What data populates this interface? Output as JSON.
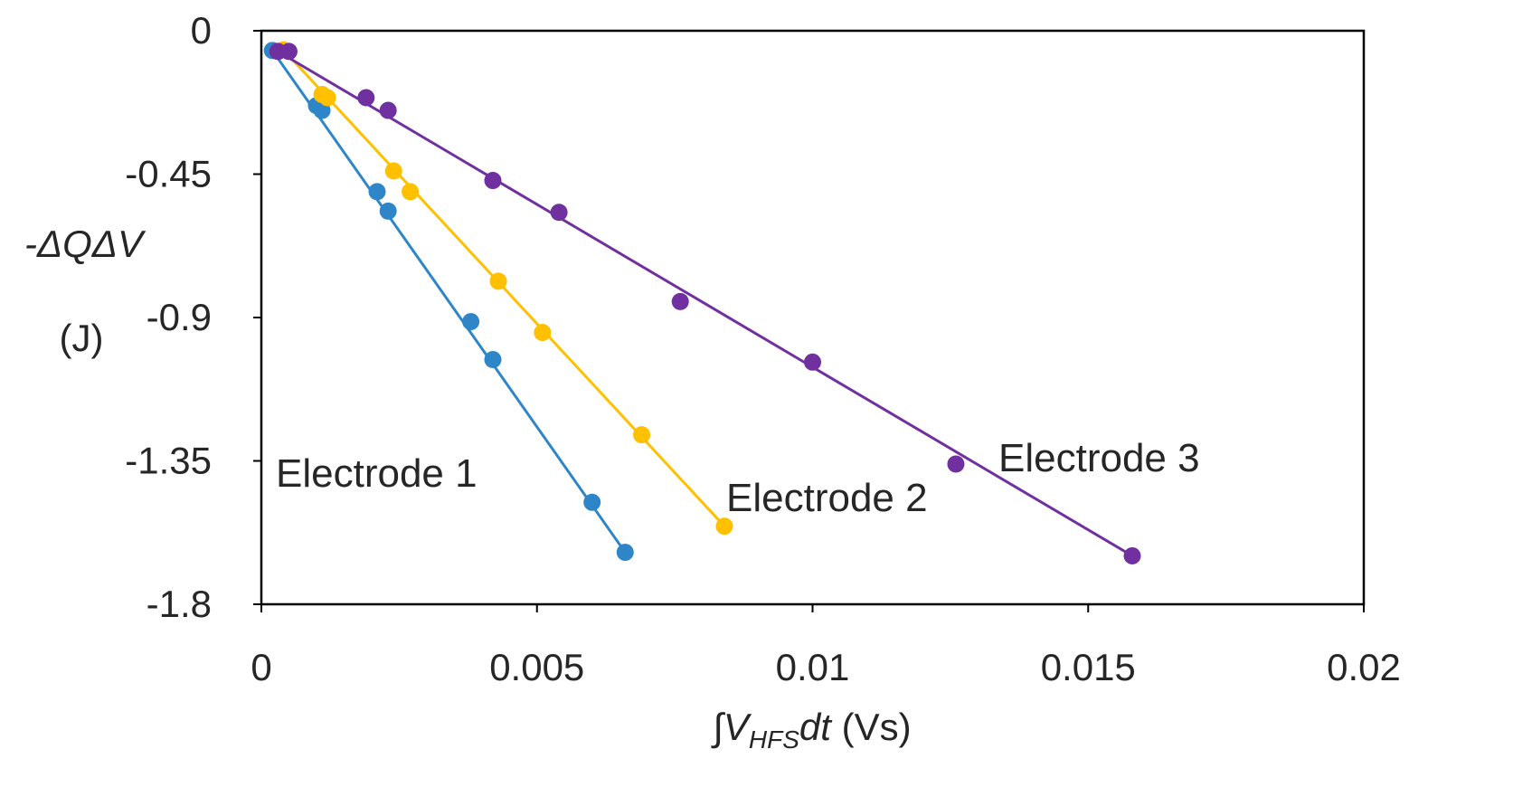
{
  "chart_data": {
    "type": "scatter",
    "title": "",
    "xlabel": {
      "prefix": "∫V",
      "subscript": "HFS",
      "suffix": "dt",
      "unit": " (Vs)"
    },
    "ylabel": {
      "line1": "-ΔQΔV",
      "line2": "(J)"
    },
    "xlim": [
      0,
      0.02
    ],
    "ylim": [
      -1.8,
      0
    ],
    "xticks": [
      0,
      0.005,
      0.01,
      0.015,
      0.02
    ],
    "xtick_labels": [
      "0",
      "0.005",
      "0.01",
      "0.015",
      "0.02"
    ],
    "yticks": [
      0,
      -0.45,
      -0.9,
      -1.35,
      -1.8
    ],
    "ytick_labels": [
      "0",
      "-0.45",
      "-0.9",
      "-1.35",
      "-1.8"
    ],
    "grid": false,
    "legend": "none",
    "series": [
      {
        "name": "Electrode 1",
        "color": "#2E86C9",
        "points": [
          [
            0.0002,
            -0.062
          ],
          [
            0.001,
            -0.235
          ],
          [
            0.0011,
            -0.25
          ],
          [
            0.0021,
            -0.505
          ],
          [
            0.0023,
            -0.566
          ],
          [
            0.0038,
            -0.913
          ],
          [
            0.0042,
            -1.032
          ],
          [
            0.006,
            -1.48
          ],
          [
            0.0066,
            -1.637
          ]
        ],
        "fit": [
          [
            0.0002,
            -0.062
          ],
          [
            0.0066,
            -1.637
          ]
        ]
      },
      {
        "name": "Electrode 2",
        "color": "#FFC000",
        "points": [
          [
            0.0004,
            -0.06
          ],
          [
            0.0011,
            -0.2
          ],
          [
            0.0012,
            -0.21
          ],
          [
            0.0024,
            -0.44
          ],
          [
            0.0027,
            -0.505
          ],
          [
            0.0043,
            -0.786
          ],
          [
            0.0051,
            -0.947
          ],
          [
            0.0069,
            -1.268
          ],
          [
            0.0084,
            -1.555
          ]
        ],
        "fit": [
          [
            0.0004,
            -0.06
          ],
          [
            0.0084,
            -1.555
          ]
        ]
      },
      {
        "name": "Electrode 3",
        "color": "#7030A0",
        "points": [
          [
            0.0003,
            -0.065
          ],
          [
            0.0005,
            -0.065
          ],
          [
            0.0019,
            -0.21
          ],
          [
            0.0023,
            -0.25
          ],
          [
            0.0042,
            -0.47
          ],
          [
            0.0054,
            -0.57
          ],
          [
            0.0076,
            -0.85
          ],
          [
            0.01,
            -1.04
          ],
          [
            0.0126,
            -1.36
          ],
          [
            0.0158,
            -1.648
          ]
        ],
        "fit": [
          [
            0.0003,
            -0.065
          ],
          [
            0.0158,
            -1.648
          ]
        ]
      }
    ]
  }
}
